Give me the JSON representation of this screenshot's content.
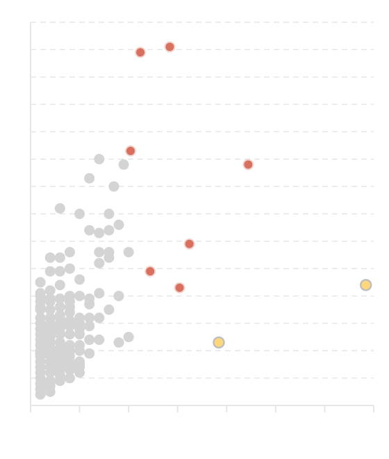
{
  "chart_data": {
    "type": "scatter",
    "title": "",
    "xlabel": "",
    "ylabel": "",
    "xlim": [
      0,
      35
    ],
    "ylim": [
      0,
      14
    ],
    "x_ticks": [
      0,
      5,
      10,
      15,
      20,
      25,
      30,
      35
    ],
    "y_gridlines": [
      0,
      1,
      2,
      3,
      4,
      5,
      6,
      7,
      8,
      9,
      10,
      11,
      12,
      13,
      14
    ],
    "grid": true,
    "show_tick_labels": false,
    "legend": "none",
    "colors": {
      "red": "#d9705f",
      "yellow": "#ffd67a",
      "gray": "#d4d4d4",
      "gray_stroke": "#bfbfbf"
    },
    "series": [
      {
        "color": "red",
        "points": [
          [
            11.2,
            12.9
          ],
          [
            14.2,
            13.1
          ],
          [
            10.2,
            9.3
          ],
          [
            22.2,
            8.8
          ],
          [
            16.2,
            5.9
          ],
          [
            12.2,
            4.9
          ],
          [
            15.2,
            4.3
          ]
        ]
      },
      {
        "color": "yellow",
        "points": [
          [
            19.2,
            2.3
          ],
          [
            34.2,
            4.4
          ]
        ]
      },
      {
        "color": "gray",
        "points": [
          [
            7.0,
            9.0
          ],
          [
            3.0,
            7.2
          ],
          [
            5.0,
            7.0
          ],
          [
            6.0,
            6.4
          ],
          [
            8.0,
            6.4
          ],
          [
            4.0,
            5.6
          ],
          [
            7.0,
            5.6
          ],
          [
            2.0,
            5.4
          ],
          [
            3.0,
            5.4
          ],
          [
            7.0,
            5.2
          ],
          [
            8.0,
            5.4
          ],
          [
            1.0,
            4.5
          ],
          [
            2.0,
            4.9
          ],
          [
            3.0,
            4.9
          ],
          [
            5.0,
            4.6
          ],
          [
            7.0,
            4.1
          ],
          [
            9.0,
            4.0
          ],
          [
            1.0,
            4.0
          ],
          [
            2.0,
            3.8
          ],
          [
            4.0,
            3.8
          ],
          [
            6.0,
            3.7
          ],
          [
            8.0,
            3.5
          ],
          [
            1.0,
            3.5
          ],
          [
            2.0,
            3.5
          ],
          [
            3.0,
            3.3
          ],
          [
            5.0,
            3.2
          ],
          [
            7.0,
            3.2
          ],
          [
            1.0,
            3.0
          ],
          [
            2.0,
            3.0
          ],
          [
            3.0,
            2.8
          ],
          [
            4.0,
            2.6
          ],
          [
            5.0,
            2.6
          ],
          [
            1.0,
            2.6
          ],
          [
            2.0,
            2.3
          ],
          [
            3.0,
            2.3
          ],
          [
            5.0,
            2.8
          ],
          [
            7.0,
            2.4
          ],
          [
            9.0,
            2.3
          ],
          [
            10.0,
            2.5
          ],
          [
            1.0,
            2.0
          ],
          [
            2.0,
            2.0
          ],
          [
            3.0,
            1.9
          ],
          [
            4.0,
            1.8
          ],
          [
            5.0,
            2.0
          ],
          [
            1.0,
            1.6
          ],
          [
            2.0,
            1.6
          ],
          [
            3.0,
            1.5
          ],
          [
            4.0,
            1.4
          ],
          [
            1.0,
            1.2
          ],
          [
            2.0,
            1.2
          ],
          [
            3.0,
            1.1
          ],
          [
            1.0,
            0.8
          ],
          [
            2.0,
            0.7
          ],
          [
            3.0,
            0.9
          ],
          [
            1.0,
            0.6
          ],
          [
            1.0,
            0.4
          ],
          [
            2.0,
            0.5
          ],
          [
            4.0,
            1.0
          ],
          [
            2.0,
            4.2
          ],
          [
            3.0,
            4.4
          ],
          [
            1.0,
            4.1
          ],
          [
            4.0,
            4.0
          ],
          [
            1.0,
            3.8
          ],
          [
            2.0,
            3.2
          ],
          [
            3.0,
            3.6
          ],
          [
            4.0,
            3.4
          ],
          [
            5.0,
            3.0
          ],
          [
            6.0,
            3.9
          ],
          [
            1.0,
            2.4
          ],
          [
            2.0,
            2.7
          ],
          [
            3.0,
            2.1
          ],
          [
            4.0,
            2.2
          ],
          [
            5.0,
            1.5
          ],
          [
            1.0,
            1.8
          ],
          [
            2.0,
            1.4
          ],
          [
            3.0,
            1.7
          ],
          [
            4.0,
            1.6
          ],
          [
            5.0,
            1.2
          ],
          [
            1.0,
            1.0
          ],
          [
            2.0,
            0.9
          ],
          [
            3.0,
            1.3
          ],
          [
            5.0,
            1.6
          ],
          [
            6.0,
            1.9
          ],
          [
            1.0,
            3.2
          ],
          [
            2.0,
            2.5
          ],
          [
            3.0,
            3.0
          ],
          [
            1.0,
            2.2
          ],
          [
            4.0,
            2.9
          ],
          [
            1.0,
            1.4
          ],
          [
            2.0,
            1.8
          ],
          [
            3.0,
            2.6
          ],
          [
            4.0,
            3.1
          ],
          [
            6.0,
            2.9
          ],
          [
            2.0,
            3.9
          ],
          [
            3.0,
            3.9
          ],
          [
            4.0,
            3.6
          ],
          [
            1.0,
            2.8
          ],
          [
            2.0,
            2.1
          ],
          [
            6.0,
            3.2
          ],
          [
            4.0,
            5.0
          ],
          [
            8.0,
            5.6
          ],
          [
            10.0,
            5.6
          ],
          [
            5.0,
            4.0
          ],
          [
            7.0,
            6.3
          ],
          [
            6.0,
            2.4
          ],
          [
            4.0,
            2.0
          ],
          [
            5.0,
            2.2
          ],
          [
            3.0,
            1.4
          ],
          [
            1.0,
            3.6
          ],
          [
            2.0,
            2.9
          ],
          [
            1.0,
            1.9
          ],
          [
            3.0,
            3.2
          ],
          [
            5.0,
            1.4
          ],
          [
            4.0,
            1.3
          ],
          [
            2.0,
            0.8
          ],
          [
            9.0,
            6.6
          ],
          [
            9.5,
            8.8
          ],
          [
            6.0,
            8.3
          ],
          [
            8.0,
            7.0
          ],
          [
            8.5,
            8.0
          ]
        ]
      }
    ]
  }
}
